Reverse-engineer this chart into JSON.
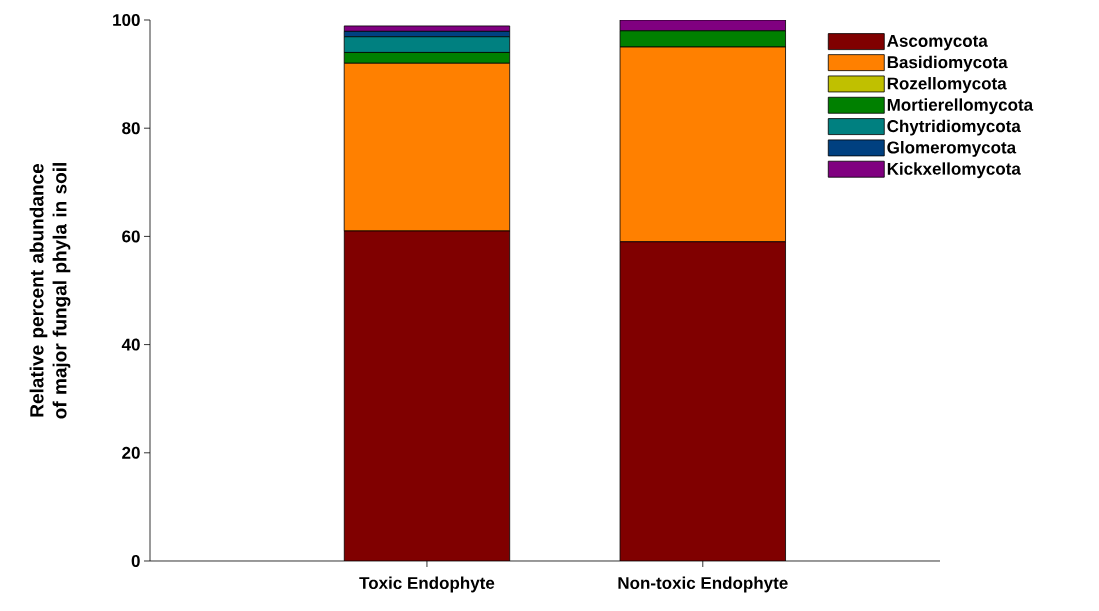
{
  "chart_data": {
    "type": "bar",
    "stacked": true,
    "ylabel": "Relative percent abundance of major fungal phyla in soil",
    "categories": [
      "Toxic Endophyte",
      "Non-toxic Endophyte"
    ],
    "ylim": [
      0,
      100
    ],
    "yticks": [
      0,
      20,
      40,
      60,
      80,
      100
    ],
    "legend": "top right",
    "grid": false,
    "series": [
      {
        "name": "Ascomycota",
        "color": "#800000",
        "values": [
          61,
          59
        ]
      },
      {
        "name": "Basidiomycota",
        "color": "#ff8000",
        "values": [
          31,
          36
        ]
      },
      {
        "name": "Rozellomycota",
        "color": "#c0c000",
        "values": [
          0,
          0
        ]
      },
      {
        "name": "Mortierellomycota",
        "color": "#008000",
        "values": [
          2,
          3
        ]
      },
      {
        "name": "Chytridiomycota",
        "color": "#008080",
        "values": [
          2.9,
          0
        ]
      },
      {
        "name": "Glomeromycota",
        "color": "#004080",
        "values": [
          1,
          0
        ]
      },
      {
        "name": "Kickxellomycota",
        "color": "#800080",
        "values": [
          1,
          2
        ]
      }
    ]
  }
}
